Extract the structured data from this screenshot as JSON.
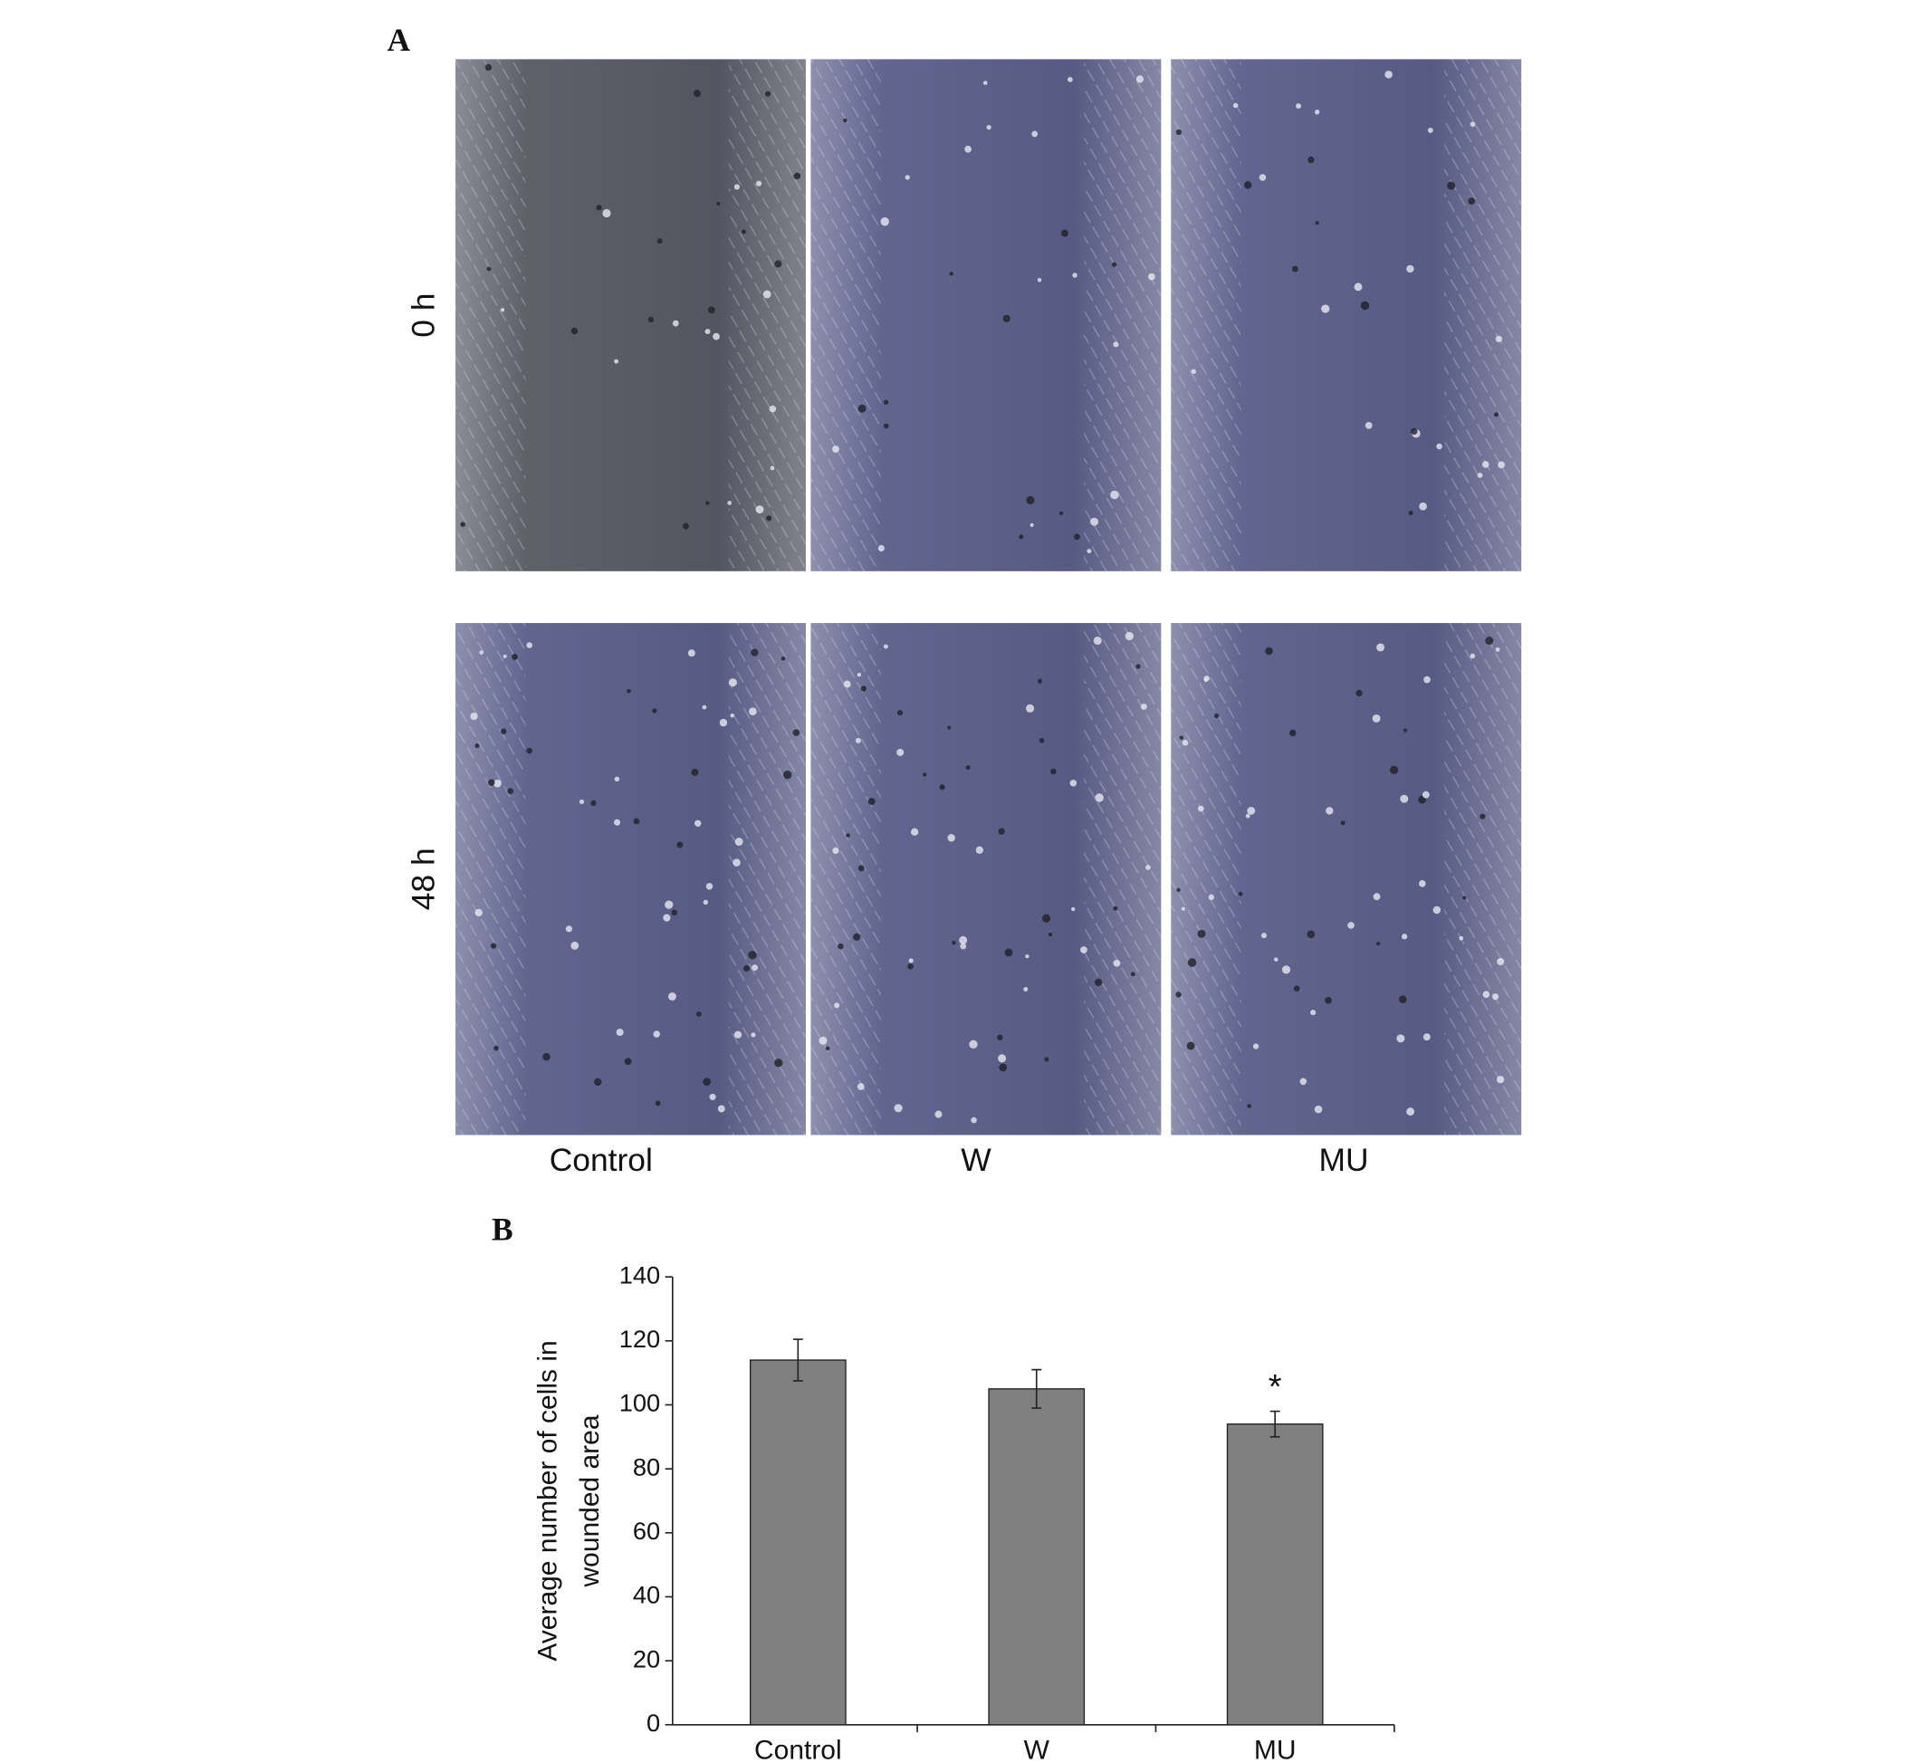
{
  "panel_a": {
    "label": "A",
    "rows": [
      "0 h",
      "48 h"
    ],
    "columns": [
      "Control",
      "W",
      "MU"
    ]
  },
  "panel_b": {
    "label": "B"
  },
  "chart_data": {
    "type": "bar",
    "y_label": [
      "Average number of cells in",
      "wounded area"
    ],
    "categories": [
      "Control",
      "W",
      "MU"
    ],
    "values": [
      114,
      105,
      94
    ],
    "errors": [
      6.5,
      6,
      4
    ],
    "color": "#808080",
    "ylim": [
      0,
      140
    ],
    "yticks": [
      0,
      20,
      40,
      60,
      80,
      100,
      120,
      140
    ],
    "grid": false,
    "annotations": [
      {
        "text": "*",
        "category": "MU"
      }
    ]
  }
}
